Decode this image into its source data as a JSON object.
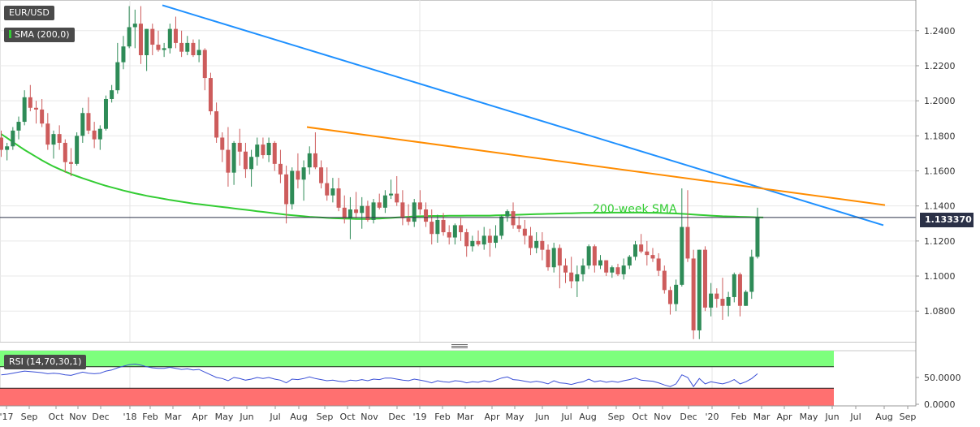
{
  "header": {
    "symbol": "EUR/USD",
    "sma_indicator": "SMA (200,0)",
    "rsi_indicator": "RSI (14,70,30,1)",
    "current_price": "1.133370"
  },
  "colors": {
    "bull": "#2e8b57",
    "bear": "#cd5c5c",
    "sma": "#33cc33",
    "blue_trendline": "#1e90ff",
    "orange_trendline": "#ff8c00",
    "rsi_line": "#3a4fd6",
    "rsi_overbought_zone": "#7dff7d",
    "rsi_oversold_zone": "#ff7070",
    "price_line": "#2b3147"
  },
  "chart_data": {
    "type": "candlestick",
    "timeframe": "weekly",
    "y_ticks": [
      "1.2400",
      "1.2200",
      "1.2000",
      "1.1800",
      "1.1600",
      "1.1400",
      "1.1200",
      "1.1000",
      "1.0800"
    ],
    "y_range": [
      1.0625,
      1.2575
    ],
    "x_labels": [
      "'17",
      "Sep",
      "Oct",
      "Nov",
      "Dec",
      "'18",
      "Feb",
      "Mar",
      "Apr",
      "May",
      "Jun",
      "Jul",
      "Aug",
      "Sep",
      "Oct",
      "Nov",
      "Dec",
      "'19",
      "Feb",
      "Mar",
      "Apr",
      "May",
      "Jun",
      "Jul",
      "Aug",
      "Sep",
      "Oct",
      "Nov",
      "Dec",
      "'20",
      "Feb",
      "Mar",
      "Apr",
      "May",
      "Jun",
      "Jul",
      "Aug",
      "Sep"
    ],
    "annotation": "200-week SMA",
    "candles": [
      [
        1.179,
        1.183,
        1.168,
        1.172
      ],
      [
        1.172,
        1.176,
        1.166,
        1.174
      ],
      [
        1.174,
        1.185,
        1.172,
        1.183
      ],
      [
        1.183,
        1.191,
        1.178,
        1.188
      ],
      [
        1.188,
        1.206,
        1.186,
        1.202
      ],
      [
        1.202,
        1.209,
        1.194,
        1.196
      ],
      [
        1.196,
        1.2,
        1.187,
        1.195
      ],
      [
        1.195,
        1.201,
        1.185,
        1.187
      ],
      [
        1.187,
        1.193,
        1.172,
        1.175
      ],
      [
        1.175,
        1.183,
        1.167,
        1.181
      ],
      [
        1.181,
        1.186,
        1.172,
        1.176
      ],
      [
        1.176,
        1.178,
        1.159,
        1.165
      ],
      [
        1.165,
        1.173,
        1.157,
        1.164
      ],
      [
        1.164,
        1.182,
        1.163,
        1.18
      ],
      [
        1.18,
        1.196,
        1.176,
        1.193
      ],
      [
        1.193,
        1.202,
        1.181,
        1.183
      ],
      [
        1.183,
        1.188,
        1.173,
        1.178
      ],
      [
        1.178,
        1.186,
        1.172,
        1.184
      ],
      [
        1.184,
        1.203,
        1.183,
        1.201
      ],
      [
        1.201,
        1.209,
        1.199,
        1.206
      ],
      [
        1.206,
        1.233,
        1.204,
        1.222
      ],
      [
        1.222,
        1.237,
        1.218,
        1.231
      ],
      [
        1.231,
        1.254,
        1.23,
        1.242
      ],
      [
        1.242,
        1.252,
        1.23,
        1.244
      ],
      [
        1.244,
        1.254,
        1.221,
        1.226
      ],
      [
        1.226,
        1.241,
        1.217,
        1.241
      ],
      [
        1.241,
        1.244,
        1.226,
        1.232
      ],
      [
        1.232,
        1.24,
        1.228,
        1.229
      ],
      [
        1.229,
        1.233,
        1.225,
        1.23
      ],
      [
        1.23,
        1.244,
        1.227,
        1.241
      ],
      [
        1.241,
        1.248,
        1.23,
        1.233
      ],
      [
        1.233,
        1.24,
        1.225,
        1.228
      ],
      [
        1.228,
        1.237,
        1.226,
        1.233
      ],
      [
        1.233,
        1.235,
        1.225,
        1.226
      ],
      [
        1.226,
        1.235,
        1.222,
        1.229
      ],
      [
        1.229,
        1.23,
        1.206,
        1.213
      ],
      [
        1.213,
        1.216,
        1.192,
        1.194
      ],
      [
        1.194,
        1.199,
        1.176,
        1.179
      ],
      [
        1.179,
        1.182,
        1.165,
        1.172
      ],
      [
        1.172,
        1.185,
        1.151,
        1.159
      ],
      [
        1.159,
        1.177,
        1.152,
        1.176
      ],
      [
        1.176,
        1.184,
        1.163,
        1.171
      ],
      [
        1.171,
        1.176,
        1.156,
        1.161
      ],
      [
        1.161,
        1.172,
        1.151,
        1.168
      ],
      [
        1.168,
        1.179,
        1.163,
        1.175
      ],
      [
        1.175,
        1.179,
        1.167,
        1.169
      ],
      [
        1.169,
        1.179,
        1.165,
        1.176
      ],
      [
        1.176,
        1.177,
        1.16,
        1.164
      ],
      [
        1.164,
        1.172,
        1.153,
        1.158
      ],
      [
        1.158,
        1.163,
        1.13,
        1.141
      ],
      [
        1.141,
        1.162,
        1.138,
        1.16
      ],
      [
        1.16,
        1.17,
        1.15,
        1.155
      ],
      [
        1.155,
        1.166,
        1.143,
        1.162
      ],
      [
        1.162,
        1.174,
        1.158,
        1.17
      ],
      [
        1.17,
        1.182,
        1.161,
        1.162
      ],
      [
        1.162,
        1.166,
        1.15,
        1.153
      ],
      [
        1.153,
        1.162,
        1.143,
        1.146
      ],
      [
        1.146,
        1.156,
        1.142,
        1.15
      ],
      [
        1.15,
        1.156,
        1.137,
        1.139
      ],
      [
        1.139,
        1.146,
        1.13,
        1.133
      ],
      [
        1.133,
        1.145,
        1.121,
        1.138
      ],
      [
        1.138,
        1.148,
        1.133,
        1.136
      ],
      [
        1.136,
        1.145,
        1.127,
        1.14
      ],
      [
        1.14,
        1.143,
        1.131,
        1.132
      ],
      [
        1.132,
        1.144,
        1.13,
        1.142
      ],
      [
        1.142,
        1.147,
        1.138,
        1.139
      ],
      [
        1.139,
        1.149,
        1.136,
        1.146
      ],
      [
        1.146,
        1.155,
        1.144,
        1.147
      ],
      [
        1.147,
        1.157,
        1.14,
        1.142
      ],
      [
        1.142,
        1.149,
        1.129,
        1.133
      ],
      [
        1.133,
        1.141,
        1.129,
        1.131
      ],
      [
        1.131,
        1.144,
        1.128,
        1.142
      ],
      [
        1.142,
        1.149,
        1.135,
        1.138
      ],
      [
        1.138,
        1.142,
        1.128,
        1.131
      ],
      [
        1.131,
        1.138,
        1.118,
        1.124
      ],
      [
        1.124,
        1.135,
        1.119,
        1.132
      ],
      [
        1.132,
        1.136,
        1.123,
        1.125
      ],
      [
        1.125,
        1.129,
        1.118,
        1.122
      ],
      [
        1.122,
        1.13,
        1.118,
        1.129
      ],
      [
        1.129,
        1.133,
        1.12,
        1.125
      ],
      [
        1.125,
        1.127,
        1.111,
        1.117
      ],
      [
        1.117,
        1.123,
        1.114,
        1.12
      ],
      [
        1.12,
        1.126,
        1.117,
        1.118
      ],
      [
        1.118,
        1.128,
        1.115,
        1.123
      ],
      [
        1.123,
        1.127,
        1.111,
        1.119
      ],
      [
        1.119,
        1.129,
        1.116,
        1.123
      ],
      [
        1.123,
        1.135,
        1.121,
        1.134
      ],
      [
        1.134,
        1.138,
        1.131,
        1.137
      ],
      [
        1.137,
        1.142,
        1.127,
        1.129
      ],
      [
        1.129,
        1.134,
        1.125,
        1.127
      ],
      [
        1.127,
        1.132,
        1.118,
        1.123
      ],
      [
        1.123,
        1.128,
        1.112,
        1.116
      ],
      [
        1.116,
        1.125,
        1.113,
        1.12
      ],
      [
        1.12,
        1.125,
        1.109,
        1.115
      ],
      [
        1.115,
        1.118,
        1.103,
        1.105
      ],
      [
        1.105,
        1.119,
        1.102,
        1.116
      ],
      [
        1.116,
        1.118,
        1.093,
        1.106
      ],
      [
        1.106,
        1.11,
        1.096,
        1.102
      ],
      [
        1.102,
        1.111,
        1.093,
        1.097
      ],
      [
        1.097,
        1.106,
        1.088,
        1.101
      ],
      [
        1.101,
        1.11,
        1.097,
        1.106
      ],
      [
        1.106,
        1.118,
        1.104,
        1.117
      ],
      [
        1.117,
        1.118,
        1.102,
        1.106
      ],
      [
        1.106,
        1.112,
        1.104,
        1.109
      ],
      [
        1.109,
        1.109,
        1.1,
        1.102
      ],
      [
        1.102,
        1.106,
        1.099,
        1.105
      ],
      [
        1.105,
        1.107,
        1.1,
        1.101
      ],
      [
        1.101,
        1.11,
        1.098,
        1.106
      ],
      [
        1.106,
        1.112,
        1.104,
        1.111
      ],
      [
        1.111,
        1.12,
        1.109,
        1.118
      ],
      [
        1.118,
        1.124,
        1.113,
        1.114
      ],
      [
        1.114,
        1.12,
        1.106,
        1.112
      ],
      [
        1.112,
        1.116,
        1.108,
        1.11
      ],
      [
        1.11,
        1.113,
        1.1,
        1.103
      ],
      [
        1.103,
        1.106,
        1.09,
        1.092
      ],
      [
        1.092,
        1.094,
        1.078,
        1.084
      ],
      [
        1.084,
        1.098,
        1.08,
        1.095
      ],
      [
        1.095,
        1.15,
        1.094,
        1.128
      ],
      [
        1.128,
        1.149,
        1.108,
        1.11
      ],
      [
        1.11,
        1.115,
        1.064,
        1.069
      ],
      [
        1.069,
        1.115,
        1.064,
        1.115
      ],
      [
        1.115,
        1.117,
        1.08,
        1.082
      ],
      [
        1.082,
        1.096,
        1.077,
        1.09
      ],
      [
        1.09,
        1.093,
        1.082,
        1.087
      ],
      [
        1.087,
        1.099,
        1.075,
        1.083
      ],
      [
        1.083,
        1.091,
        1.077,
        1.088
      ],
      [
        1.088,
        1.102,
        1.085,
        1.101
      ],
      [
        1.101,
        1.102,
        1.077,
        1.083
      ],
      [
        1.083,
        1.092,
        1.083,
        1.091
      ],
      [
        1.091,
        1.115,
        1.087,
        1.111
      ],
      [
        1.111,
        1.139,
        1.11,
        1.1334
      ]
    ],
    "sma_200": [
      1.181,
      1.1788,
      1.1765,
      1.1742,
      1.172,
      1.17,
      1.168,
      1.166,
      1.1642,
      1.1625,
      1.161,
      1.1596,
      1.1582,
      1.157,
      1.1558,
      1.1547,
      1.1536,
      1.1525,
      1.1515,
      1.1506,
      1.1497,
      1.1488,
      1.148,
      1.1472,
      1.1465,
      1.1458,
      1.1452,
      1.1446,
      1.144,
      1.1434,
      1.1429,
      1.1424,
      1.1419,
      1.1414,
      1.141,
      1.1406,
      1.1402,
      1.1398,
      1.1394,
      1.139,
      1.1386,
      1.1382,
      1.1378,
      1.1374,
      1.137,
      1.1366,
      1.1362,
      1.1358,
      1.1354,
      1.135,
      1.1347,
      1.1344,
      1.1341,
      1.1338,
      1.1336,
      1.1334,
      1.1332,
      1.133,
      1.1329,
      1.1328,
      1.1327,
      1.1326,
      1.1326,
      1.1326,
      1.1327,
      1.1328,
      1.133,
      1.1332,
      1.1334,
      1.1336,
      1.1338,
      1.134,
      1.1341,
      1.1342,
      1.1343,
      1.1343,
      1.1343,
      1.1344,
      1.1344,
      1.1344,
      1.1345,
      1.1345,
      1.1345,
      1.1345,
      1.1345,
      1.1346,
      1.1347,
      1.1348,
      1.1349,
      1.135,
      1.1351,
      1.1352,
      1.1353,
      1.1354,
      1.1355,
      1.1356,
      1.1357,
      1.1358,
      1.1358,
      1.1359,
      1.136,
      1.136,
      1.1361,
      1.1361,
      1.1361,
      1.1362,
      1.1362,
      1.1362,
      1.1362,
      1.1362,
      1.1362,
      1.1361,
      1.1361,
      1.136,
      1.1359,
      1.1358,
      1.1357,
      1.1355,
      1.1353,
      1.1351,
      1.1349,
      1.1347,
      1.1345,
      1.1343,
      1.1341,
      1.134,
      1.1339,
      1.1338,
      1.1337,
      1.1336,
      1.1335,
      1.1334
    ],
    "rsi": [
      55,
      56,
      58,
      60,
      62,
      61,
      60,
      59,
      57,
      58,
      57,
      55,
      54,
      57,
      60,
      58,
      57,
      58,
      62,
      64,
      68,
      71,
      74,
      75,
      73,
      70,
      68,
      67,
      67,
      69,
      67,
      65,
      66,
      64,
      65,
      60,
      55,
      50,
      48,
      44,
      50,
      48,
      45,
      47,
      50,
      48,
      50,
      47,
      45,
      40,
      47,
      46,
      48,
      51,
      48,
      46,
      44,
      45,
      43,
      42,
      45,
      44,
      46,
      44,
      47,
      46,
      49,
      49,
      47,
      45,
      44,
      47,
      45,
      43,
      40,
      44,
      42,
      41,
      44,
      43,
      40,
      42,
      41,
      44,
      42,
      45,
      49,
      51,
      46,
      45,
      43,
      41,
      43,
      41,
      38,
      44,
      40,
      39,
      37,
      40,
      42,
      47,
      42,
      44,
      41,
      43,
      41,
      44,
      46,
      49,
      45,
      44,
      43,
      40,
      36,
      33,
      38,
      55,
      50,
      33,
      48,
      38,
      42,
      40,
      38,
      41,
      46,
      38,
      42,
      48,
      57
    ]
  }
}
